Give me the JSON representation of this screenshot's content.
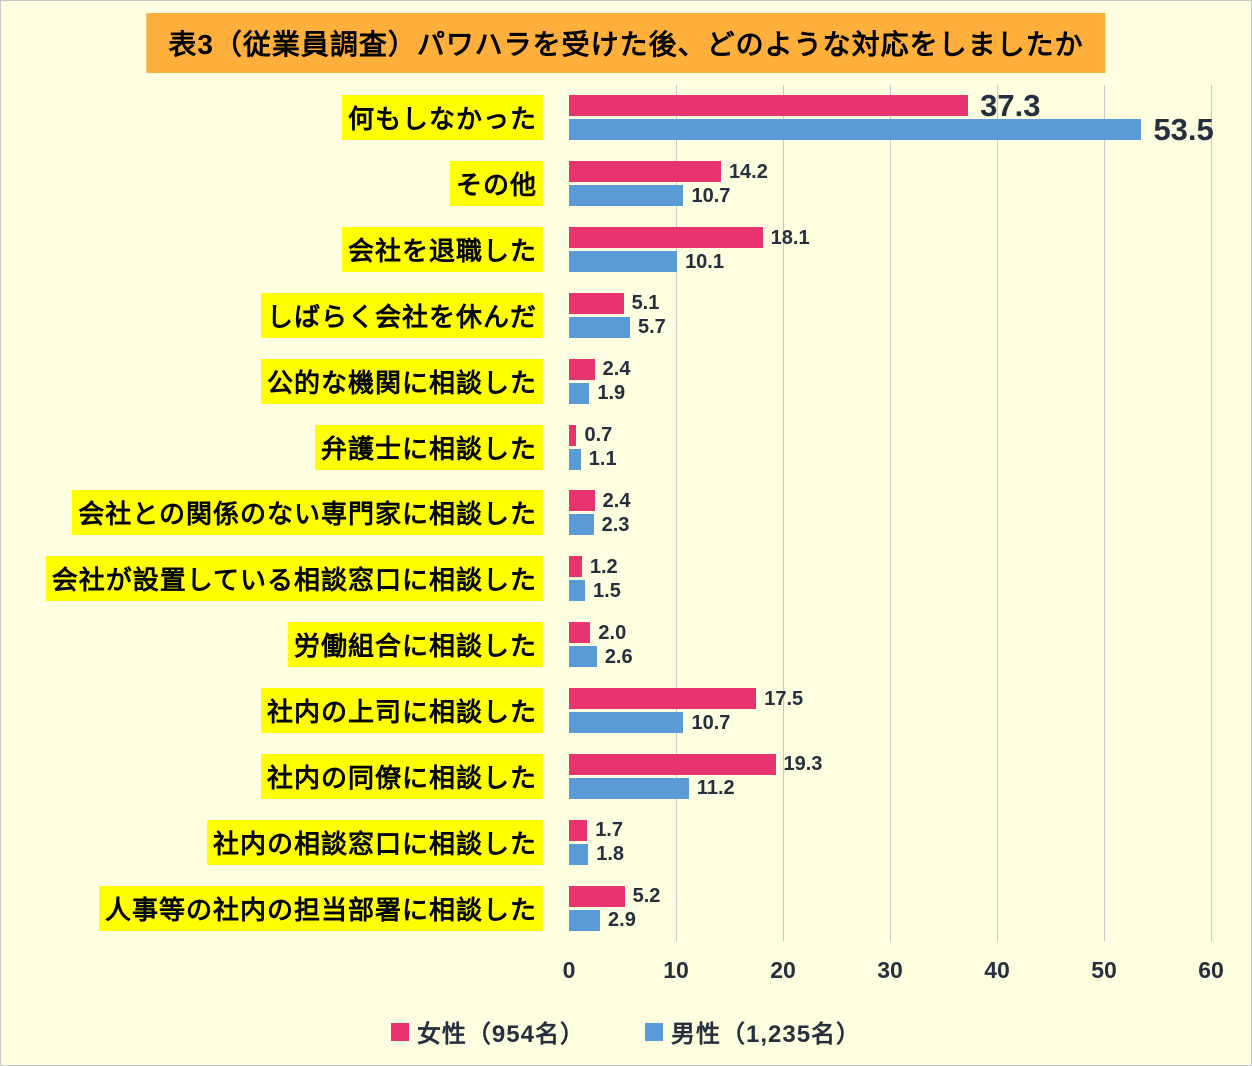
{
  "chart_data": {
    "type": "bar",
    "orientation": "horizontal",
    "title": "表3（従業員調査）パワハラを受けた後、どのような対応をしましたか",
    "categories": [
      "何もしなかった",
      "その他",
      "会社を退職した",
      "しばらく会社を休んだ",
      "公的な機関に相談した",
      "弁護士に相談した",
      "会社との関係のない専門家に相談した",
      "会社が設置している相談窓口に相談した",
      "労働組合に相談した",
      "社内の上司に相談した",
      "社内の同僚に相談した",
      "社内の相談窓口に相談した",
      "人事等の社内の担当部署に相談した"
    ],
    "series": [
      {
        "name": "女性（954名）",
        "color": "#E8346E",
        "values": [
          37.3,
          14.2,
          18.1,
          5.1,
          2.4,
          0.7,
          2.4,
          1.2,
          2.0,
          17.5,
          19.3,
          1.7,
          5.2
        ]
      },
      {
        "name": "男性（1,235名）",
        "color": "#5B9BD5",
        "values": [
          53.5,
          10.7,
          10.1,
          5.7,
          1.9,
          1.1,
          2.3,
          1.5,
          2.6,
          10.7,
          11.2,
          1.8,
          2.9
        ]
      }
    ],
    "xlim": [
      0,
      60
    ],
    "x_ticks": [
      0,
      10,
      20,
      30,
      40,
      50,
      60
    ],
    "grid": true,
    "legend_position": "bottom",
    "big_label_row_index": 0
  },
  "legend": {
    "female": "女性（954名）",
    "male": "男性（1,235名）"
  },
  "colors": {
    "background": "#FEFEE0",
    "title_bg": "#FFAF3C",
    "category_highlight": "#FFFF00",
    "female_bar": "#E8346E",
    "male_bar": "#5B9BD5",
    "gridline": "#C9C9C9",
    "text": "#262F3D"
  }
}
